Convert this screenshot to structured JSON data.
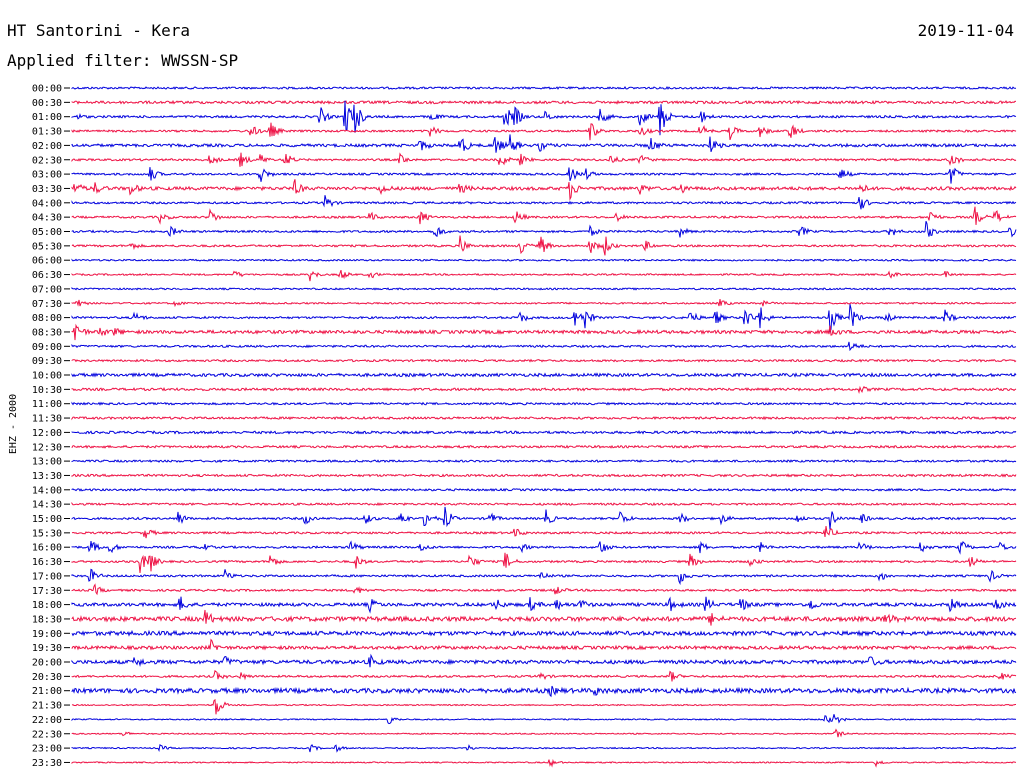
{
  "header": {
    "station": "HT Santorini - Kera",
    "date": "2019-11-04",
    "filter": "Applied filter: WWSSN-SP"
  },
  "colors": {
    "blue": "#0000dd",
    "red": "#ee1144"
  },
  "chart_data": {
    "type": "line",
    "title": "HT Santorini - Kera",
    "ylabel": "EHZ - 2000",
    "rows": [
      {
        "label": "00:00",
        "color": "blue",
        "noise": 1.0,
        "events": []
      },
      {
        "label": "00:30",
        "color": "red",
        "noise": 1.3,
        "events": []
      },
      {
        "label": "01:00",
        "color": "blue",
        "noise": 1.1,
        "events": [
          [
            76,
            3
          ],
          [
            320,
            10
          ],
          [
            345,
            22
          ],
          [
            355,
            18
          ],
          [
            430,
            5
          ],
          [
            505,
            12
          ],
          [
            515,
            10
          ],
          [
            545,
            5
          ],
          [
            600,
            8
          ],
          [
            640,
            10
          ],
          [
            660,
            22
          ],
          [
            700,
            8
          ]
        ]
      },
      {
        "label": "01:30",
        "color": "red",
        "noise": 1.0,
        "events": [
          [
            250,
            8
          ],
          [
            270,
            10
          ],
          [
            430,
            6
          ],
          [
            590,
            10
          ],
          [
            640,
            6
          ],
          [
            700,
            8
          ],
          [
            730,
            8
          ],
          [
            760,
            6
          ],
          [
            790,
            10
          ]
        ]
      },
      {
        "label": "02:00",
        "color": "blue",
        "noise": 1.4,
        "events": [
          [
            420,
            6
          ],
          [
            460,
            12
          ],
          [
            495,
            10
          ],
          [
            510,
            10
          ],
          [
            540,
            5
          ],
          [
            650,
            8
          ],
          [
            710,
            8
          ]
        ]
      },
      {
        "label": "02:30",
        "color": "red",
        "noise": 1.0,
        "events": [
          [
            210,
            6
          ],
          [
            240,
            8
          ],
          [
            260,
            6
          ],
          [
            285,
            8
          ],
          [
            400,
            6
          ],
          [
            500,
            8
          ],
          [
            520,
            6
          ],
          [
            610,
            5
          ],
          [
            640,
            6
          ],
          [
            950,
            10
          ]
        ]
      },
      {
        "label": "03:00",
        "color": "blue",
        "noise": 1.0,
        "events": [
          [
            150,
            8
          ],
          [
            260,
            10
          ],
          [
            570,
            10
          ],
          [
            585,
            6
          ],
          [
            840,
            8
          ],
          [
            950,
            12
          ]
        ]
      },
      {
        "label": "03:30",
        "color": "red",
        "noise": 1.6,
        "events": [
          [
            75,
            6
          ],
          [
            95,
            5
          ],
          [
            130,
            6
          ],
          [
            295,
            8
          ],
          [
            380,
            6
          ],
          [
            460,
            5
          ],
          [
            570,
            10
          ],
          [
            640,
            5
          ],
          [
            680,
            6
          ],
          [
            860,
            5
          ]
        ]
      },
      {
        "label": "04:00",
        "color": "blue",
        "noise": 1.0,
        "events": [
          [
            325,
            8
          ],
          [
            860,
            8
          ]
        ]
      },
      {
        "label": "04:30",
        "color": "red",
        "noise": 1.0,
        "events": [
          [
            160,
            5
          ],
          [
            210,
            8
          ],
          [
            370,
            5
          ],
          [
            420,
            8
          ],
          [
            515,
            8
          ],
          [
            615,
            5
          ],
          [
            930,
            8
          ],
          [
            975,
            10
          ],
          [
            995,
            8
          ]
        ]
      },
      {
        "label": "05:00",
        "color": "blue",
        "noise": 1.0,
        "events": [
          [
            170,
            6
          ],
          [
            435,
            8
          ],
          [
            590,
            5
          ],
          [
            680,
            5
          ],
          [
            800,
            6
          ],
          [
            890,
            6
          ],
          [
            925,
            12
          ],
          [
            1010,
            6
          ]
        ]
      },
      {
        "label": "05:30",
        "color": "red",
        "noise": 1.0,
        "events": [
          [
            130,
            4
          ],
          [
            460,
            10
          ],
          [
            520,
            8
          ],
          [
            540,
            12
          ],
          [
            590,
            8
          ],
          [
            605,
            10
          ],
          [
            645,
            5
          ]
        ]
      },
      {
        "label": "06:00",
        "color": "blue",
        "noise": 0.8,
        "events": []
      },
      {
        "label": "06:30",
        "color": "red",
        "noise": 0.8,
        "events": [
          [
            235,
            4
          ],
          [
            310,
            6
          ],
          [
            340,
            6
          ],
          [
            370,
            4
          ],
          [
            890,
            4
          ],
          [
            945,
            3
          ]
        ]
      },
      {
        "label": "07:00",
        "color": "blue",
        "noise": 0.8,
        "events": []
      },
      {
        "label": "07:30",
        "color": "red",
        "noise": 0.8,
        "events": [
          [
            75,
            6
          ],
          [
            175,
            3
          ],
          [
            720,
            4
          ],
          [
            760,
            4
          ]
        ]
      },
      {
        "label": "08:00",
        "color": "blue",
        "noise": 1.0,
        "events": [
          [
            135,
            6
          ],
          [
            520,
            6
          ],
          [
            575,
            12
          ],
          [
            585,
            10
          ],
          [
            690,
            8
          ],
          [
            715,
            8
          ],
          [
            745,
            12
          ],
          [
            760,
            12
          ],
          [
            830,
            14
          ],
          [
            850,
            14
          ],
          [
            885,
            6
          ],
          [
            945,
            8
          ]
        ]
      },
      {
        "label": "08:30",
        "color": "red",
        "noise": 1.6,
        "events": [
          [
            75,
            12
          ],
          [
            100,
            5
          ],
          [
            115,
            4
          ],
          [
            830,
            6
          ]
        ]
      },
      {
        "label": "09:00",
        "color": "blue",
        "noise": 1.0,
        "events": [
          [
            850,
            6
          ]
        ]
      },
      {
        "label": "09:30",
        "color": "red",
        "noise": 1.0,
        "events": []
      },
      {
        "label": "10:00",
        "color": "blue",
        "noise": 1.5,
        "events": []
      },
      {
        "label": "10:30",
        "color": "red",
        "noise": 1.2,
        "events": [
          [
            860,
            3
          ]
        ]
      },
      {
        "label": "11:00",
        "color": "blue",
        "noise": 1.0,
        "events": []
      },
      {
        "label": "11:30",
        "color": "red",
        "noise": 1.1,
        "events": []
      },
      {
        "label": "12:00",
        "color": "blue",
        "noise": 1.2,
        "events": []
      },
      {
        "label": "12:30",
        "color": "red",
        "noise": 1.1,
        "events": []
      },
      {
        "label": "13:00",
        "color": "blue",
        "noise": 1.0,
        "events": []
      },
      {
        "label": "13:30",
        "color": "red",
        "noise": 1.1,
        "events": []
      },
      {
        "label": "14:00",
        "color": "blue",
        "noise": 1.0,
        "events": []
      },
      {
        "label": "14:30",
        "color": "red",
        "noise": 1.0,
        "events": []
      },
      {
        "label": "15:00",
        "color": "blue",
        "noise": 1.0,
        "events": [
          [
            178,
            8
          ],
          [
            305,
            6
          ],
          [
            365,
            6
          ],
          [
            400,
            8
          ],
          [
            425,
            10
          ],
          [
            445,
            12
          ],
          [
            490,
            6
          ],
          [
            545,
            10
          ],
          [
            620,
            8
          ],
          [
            680,
            6
          ],
          [
            720,
            6
          ],
          [
            795,
            6
          ],
          [
            830,
            10
          ],
          [
            860,
            6
          ]
        ]
      },
      {
        "label": "15:30",
        "color": "red",
        "noise": 1.0,
        "events": [
          [
            145,
            6
          ],
          [
            515,
            5
          ],
          [
            825,
            10
          ]
        ]
      },
      {
        "label": "16:00",
        "color": "blue",
        "noise": 1.0,
        "events": [
          [
            90,
            8
          ],
          [
            110,
            6
          ],
          [
            200,
            6
          ],
          [
            350,
            8
          ],
          [
            420,
            5
          ],
          [
            520,
            5
          ],
          [
            600,
            8
          ],
          [
            700,
            6
          ],
          [
            760,
            5
          ],
          [
            860,
            6
          ],
          [
            920,
            6
          ],
          [
            960,
            8
          ],
          [
            1000,
            5
          ]
        ]
      },
      {
        "label": "16:30",
        "color": "red",
        "noise": 1.0,
        "events": [
          [
            140,
            12
          ],
          [
            150,
            10
          ],
          [
            270,
            8
          ],
          [
            355,
            8
          ],
          [
            470,
            8
          ],
          [
            505,
            10
          ],
          [
            690,
            8
          ],
          [
            750,
            5
          ],
          [
            970,
            6
          ]
        ]
      },
      {
        "label": "17:00",
        "color": "blue",
        "noise": 1.0,
        "events": [
          [
            90,
            8
          ],
          [
            225,
            6
          ],
          [
            540,
            5
          ],
          [
            680,
            8
          ],
          [
            880,
            6
          ],
          [
            990,
            6
          ]
        ]
      },
      {
        "label": "17:30",
        "color": "red",
        "noise": 1.0,
        "events": [
          [
            95,
            5
          ],
          [
            355,
            5
          ],
          [
            555,
            5
          ]
        ]
      },
      {
        "label": "18:00",
        "color": "blue",
        "noise": 1.6,
        "events": [
          [
            180,
            8
          ],
          [
            370,
            6
          ],
          [
            495,
            6
          ],
          [
            530,
            6
          ],
          [
            555,
            6
          ],
          [
            580,
            5
          ],
          [
            670,
            6
          ],
          [
            705,
            8
          ],
          [
            740,
            8
          ],
          [
            810,
            6
          ],
          [
            950,
            6
          ],
          [
            995,
            8
          ]
        ]
      },
      {
        "label": "18:30",
        "color": "red",
        "noise": 2.2,
        "events": [
          [
            205,
            8
          ],
          [
            710,
            6
          ],
          [
            885,
            6
          ]
        ]
      },
      {
        "label": "19:00",
        "color": "blue",
        "noise": 2.0,
        "events": []
      },
      {
        "label": "19:30",
        "color": "red",
        "noise": 1.6,
        "events": [
          [
            210,
            8
          ]
        ]
      },
      {
        "label": "20:00",
        "color": "blue",
        "noise": 1.8,
        "events": [
          [
            135,
            5
          ],
          [
            225,
            5
          ],
          [
            370,
            6
          ],
          [
            870,
            5
          ]
        ]
      },
      {
        "label": "20:30",
        "color": "red",
        "noise": 1.0,
        "events": [
          [
            215,
            5
          ],
          [
            240,
            4
          ],
          [
            540,
            4
          ],
          [
            670,
            6
          ],
          [
            1000,
            4
          ]
        ]
      },
      {
        "label": "21:00",
        "color": "blue",
        "noise": 2.2,
        "events": [
          [
            550,
            4
          ],
          [
            595,
            4
          ]
        ]
      },
      {
        "label": "21:30",
        "color": "red",
        "noise": 0.6,
        "events": [
          [
            215,
            14
          ]
        ]
      },
      {
        "label": "22:00",
        "color": "blue",
        "noise": 0.6,
        "events": [
          [
            388,
            6
          ],
          [
            825,
            6
          ],
          [
            835,
            6
          ]
        ]
      },
      {
        "label": "22:30",
        "color": "red",
        "noise": 0.6,
        "events": [
          [
            123,
            3
          ],
          [
            835,
            5
          ]
        ]
      },
      {
        "label": "23:00",
        "color": "blue",
        "noise": 0.6,
        "events": [
          [
            160,
            3
          ],
          [
            310,
            4
          ],
          [
            335,
            4
          ],
          [
            468,
            3
          ]
        ]
      },
      {
        "label": "23:30",
        "color": "red",
        "noise": 0.6,
        "events": [
          [
            550,
            4
          ],
          [
            876,
            4
          ]
        ]
      }
    ]
  }
}
